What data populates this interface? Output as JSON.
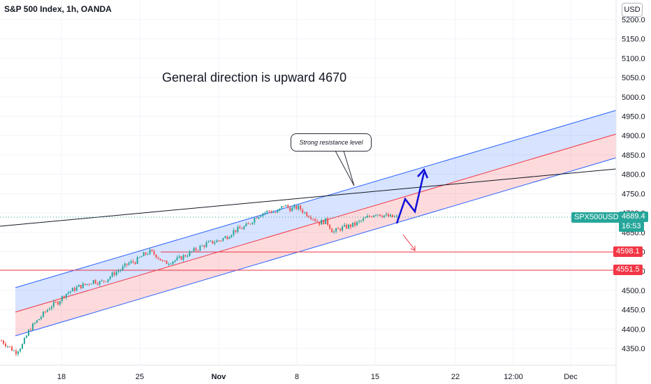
{
  "header": {
    "title": "S&P 500 Index, 1h, OANDA",
    "currency": "USD"
  },
  "annotation": {
    "main_text": "General direction is upward 4670",
    "callout_text": "Strong resistance level"
  },
  "price_labels": {
    "symbol": "SPX500USD",
    "current": "4689.4",
    "countdown": "16:53",
    "level1": "4598.1",
    "level2": "4551.5"
  },
  "colors": {
    "up": "#26a69a",
    "down": "#ef5350",
    "channel_line": "#2962ff",
    "mid_line": "#f23645",
    "level_red": "#f23645",
    "arrow_blue": "#0d0dd8"
  },
  "chart_data": {
    "type": "candlestick",
    "title": "S&P 500 Index, 1h, OANDA",
    "y_ticks": [
      4350,
      4400,
      4450,
      4500,
      4550,
      4600,
      4650,
      4700,
      4750,
      4800,
      4850,
      4900,
      4950,
      5000,
      5050,
      5100,
      5150,
      5200
    ],
    "y_tick_labels": [
      "4350.0",
      "4400.0",
      "4450.0",
      "4500.0",
      "4550.0",
      "4600.0",
      "4650.0",
      "4700.0",
      "4750.0",
      "4800.0",
      "4850.0",
      "4900.0",
      "4950.0",
      "5000.0",
      "5050.0",
      "5100.0",
      "5150.0",
      "5200.0"
    ],
    "x_tick_labels": [
      "18",
      "25",
      "Nov",
      "8",
      "15",
      "22",
      "12:00",
      "Dec"
    ],
    "ylim": [
      4300,
      5220
    ],
    "current_price": 4689.4,
    "horizontal_levels": [
      4598.1,
      4551.5
    ],
    "price_path": [
      4370,
      4355,
      4340,
      4360,
      4400,
      4420,
      4440,
      4460,
      4470,
      4490,
      4500,
      4510,
      4515,
      4525,
      4520,
      4530,
      4545,
      4555,
      4570,
      4575,
      4590,
      4600,
      4590,
      4570,
      4575,
      4580,
      4590,
      4600,
      4610,
      4620,
      4625,
      4630,
      4640,
      4655,
      4660,
      4670,
      4690,
      4700,
      4705,
      4700,
      4720,
      4710,
      4715,
      4700,
      4690,
      4675,
      4680,
      4650,
      4660,
      4665,
      4670,
      4680,
      4690,
      4700,
      4695,
      4690,
      4689
    ]
  }
}
